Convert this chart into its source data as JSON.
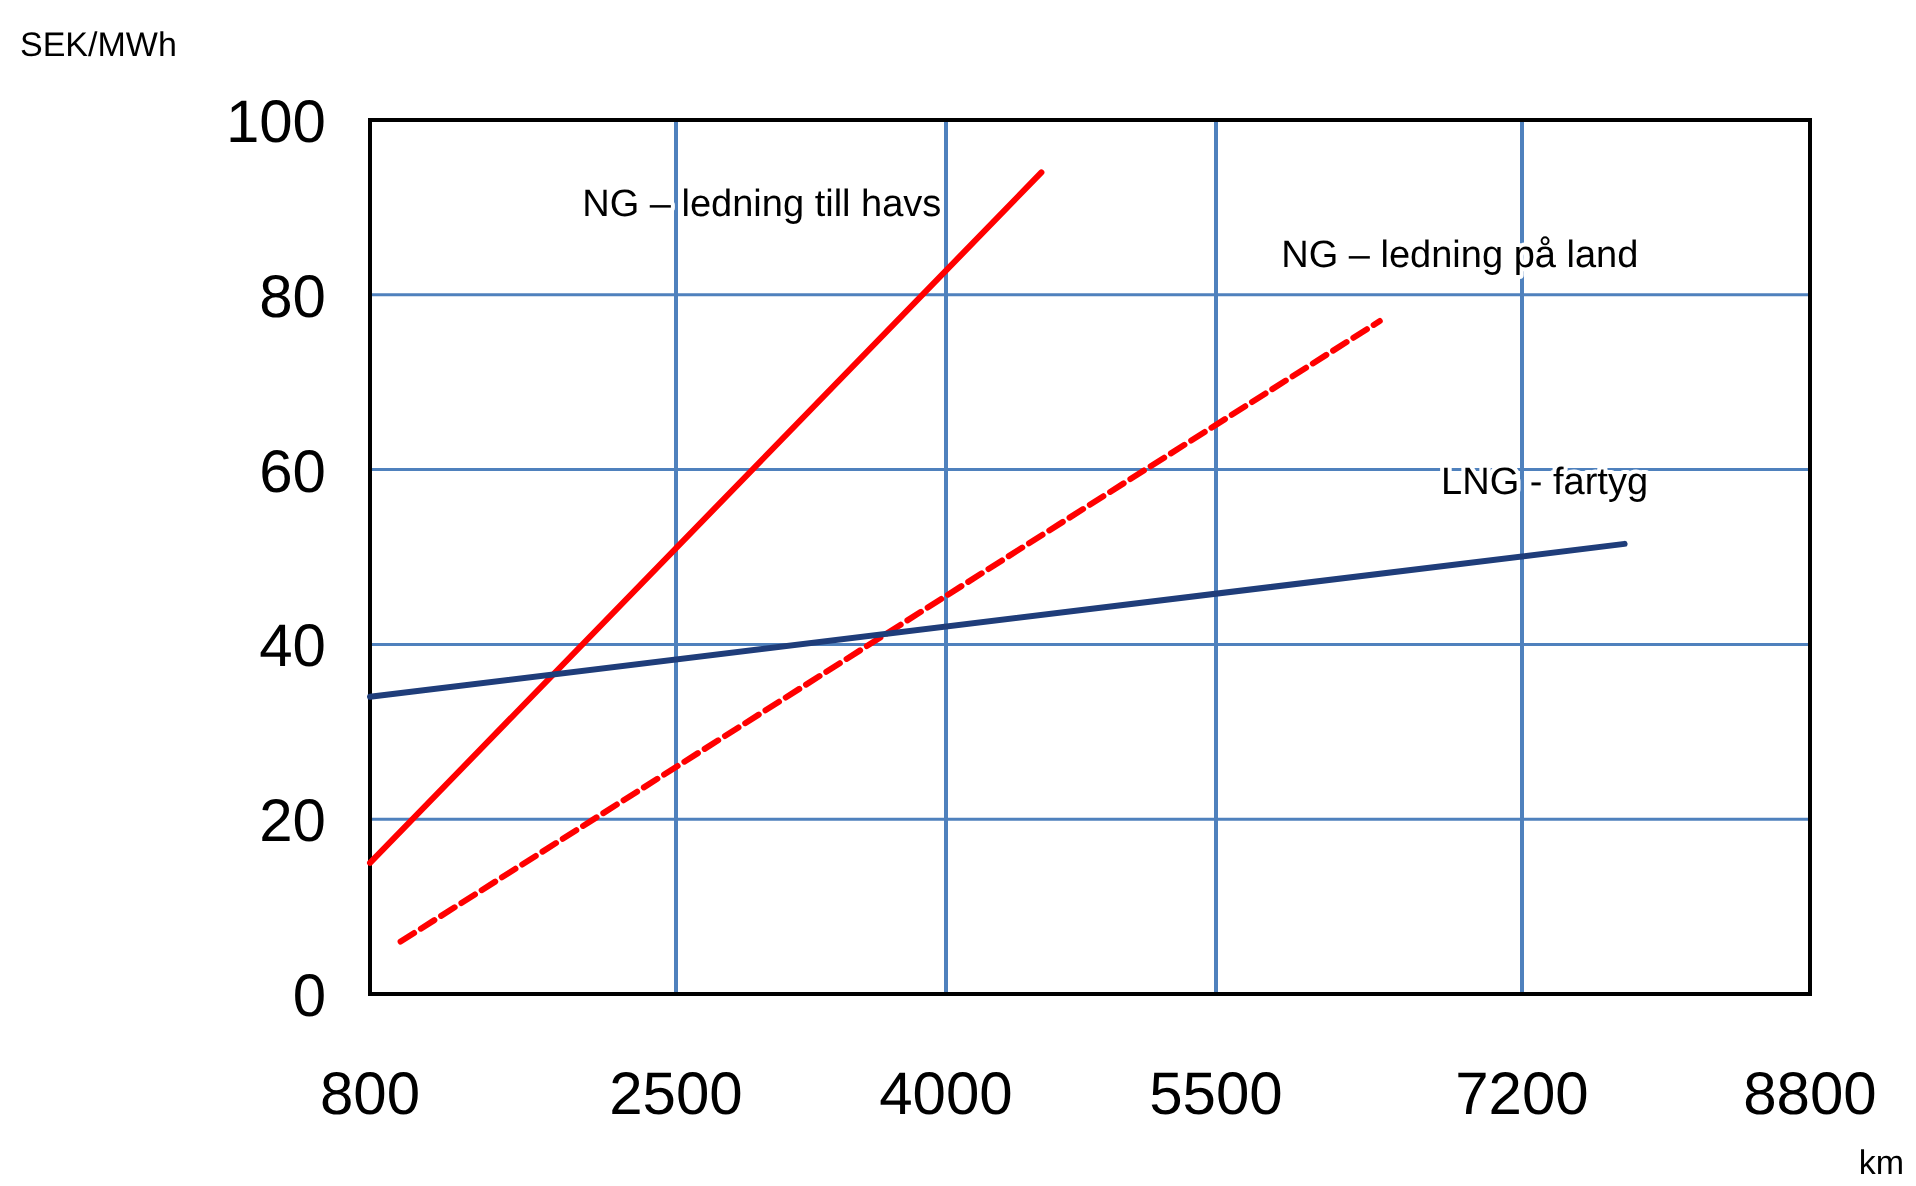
{
  "chart_data": {
    "type": "line",
    "xlabel": "km",
    "ylabel": "SEK/MWh",
    "xlim": [
      800,
      8800
    ],
    "xticks": [
      800,
      2500,
      4000,
      5500,
      7200,
      8800
    ],
    "ylim": [
      0,
      100
    ],
    "yticks": [
      0,
      20,
      40,
      60,
      80,
      100
    ],
    "grid": true,
    "marker": "none",
    "series": [
      {
        "name": "NG – ledning till havs",
        "color": "#ff0000",
        "x": [
          800,
          4530
        ],
        "values": [
          15,
          94
        ],
        "line_style": "solid"
      },
      {
        "name": "NG – ledning på land",
        "color": "#ff0000",
        "x": [
          970,
          6410
        ],
        "values": [
          6,
          77
        ],
        "line_style": "dashed"
      },
      {
        "name": "LNG - fartyg",
        "color": "#1f3d7a",
        "x": [
          800,
          7770
        ],
        "values": [
          34,
          51.5
        ],
        "line_style": "solid"
      }
    ]
  }
}
